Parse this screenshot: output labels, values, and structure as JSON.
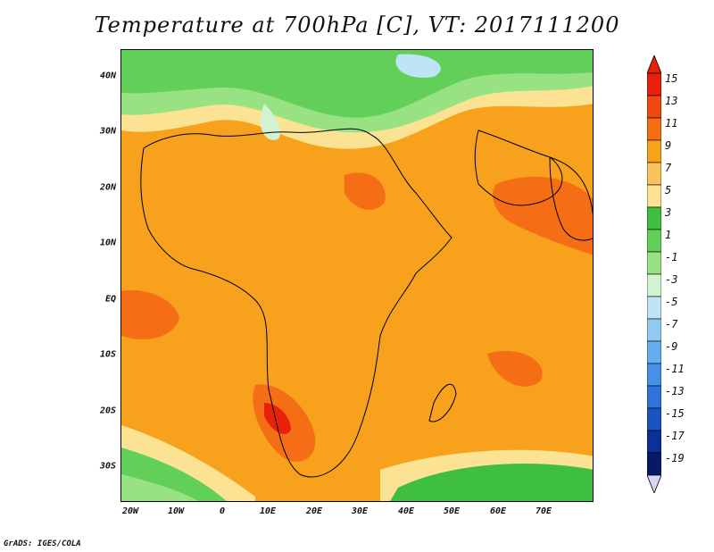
{
  "title": "Temperature at 700hPa [C], VT: 2017111200",
  "credit": "GrADS: IGES/COLA",
  "map": {
    "lon_range": [
      -23,
      80
    ],
    "lat_range": [
      -36,
      45
    ],
    "y_axis_labels": [
      {
        "lat": 40,
        "text": "40N"
      },
      {
        "lat": 30,
        "text": "30N"
      },
      {
        "lat": 20,
        "text": "20N"
      },
      {
        "lat": 10,
        "text": "10N"
      },
      {
        "lat": 0,
        "text": "EQ"
      },
      {
        "lat": -10,
        "text": "10S"
      },
      {
        "lat": -20,
        "text": "20S"
      },
      {
        "lat": -30,
        "text": "30S"
      }
    ],
    "x_axis_labels": [
      {
        "lon": -20,
        "text": "20W"
      },
      {
        "lon": -10,
        "text": "10W"
      },
      {
        "lon": 0,
        "text": "0"
      },
      {
        "lon": 10,
        "text": "10E"
      },
      {
        "lon": 20,
        "text": "20E"
      },
      {
        "lon": 30,
        "text": "30E"
      },
      {
        "lon": 40,
        "text": "40E"
      },
      {
        "lon": 50,
        "text": "50E"
      },
      {
        "lon": 60,
        "text": "60E"
      },
      {
        "lon": 70,
        "text": "70E"
      }
    ]
  },
  "colorbar": {
    "levels": [
      {
        "label": "15",
        "color": "#e8200c"
      },
      {
        "label": "13",
        "color": "#f04a10"
      },
      {
        "label": "11",
        "color": "#f56e15"
      },
      {
        "label": "9",
        "color": "#f7a11c"
      },
      {
        "label": "7",
        "color": "#f9c25a"
      },
      {
        "label": "5",
        "color": "#fbe393"
      },
      {
        "label": "3",
        "color": "#3fbf40"
      },
      {
        "label": "1",
        "color": "#62d058"
      },
      {
        "label": "-1",
        "color": "#98e284"
      },
      {
        "label": "-3",
        "color": "#d4f2d2"
      },
      {
        "label": "-5",
        "color": "#bfe3f7"
      },
      {
        "label": "-7",
        "color": "#93caf2"
      },
      {
        "label": "-9",
        "color": "#66adf0"
      },
      {
        "label": "-11",
        "color": "#4691e7"
      },
      {
        "label": "-13",
        "color": "#2d73d9"
      },
      {
        "label": "-15",
        "color": "#1a54c0"
      },
      {
        "label": "-17",
        "color": "#0d2f99"
      },
      {
        "label": "-19",
        "color": "#061a66"
      }
    ],
    "top_color": "#e8200c",
    "bottom_color": "#d8d6f3"
  }
}
